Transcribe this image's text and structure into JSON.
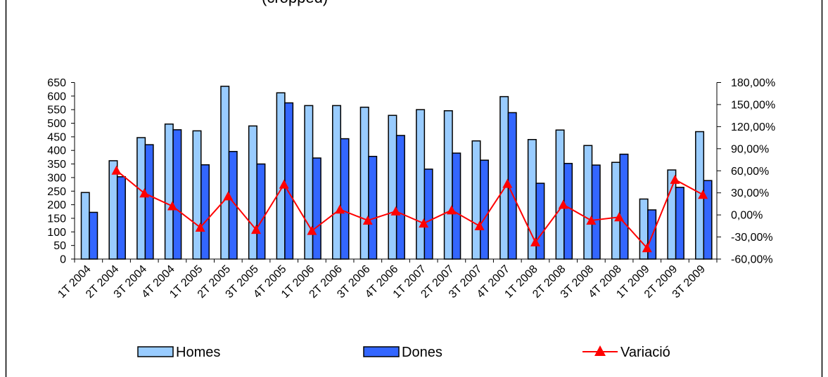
{
  "chart_data": {
    "type": "bar",
    "title": "(cropped)",
    "categories": [
      "1T 2004",
      "2T 2004",
      "3T 2004",
      "4T 2004",
      "1T 2005",
      "2T 2005",
      "3T 2005",
      "4T 2005",
      "1T 2006",
      "2T 2006",
      "3T 2006",
      "4T 2006",
      "1T 2007",
      "2T 2007",
      "3T 2007",
      "4T 2007",
      "1T 2008",
      "2T 2008",
      "3T 2008",
      "4T 2008",
      "1T 2009",
      "2T 2009",
      "3T 2009"
    ],
    "series": [
      {
        "name": "Homes",
        "kind": "bar",
        "axis": "left",
        "color": "#99ccff",
        "values": [
          245,
          362,
          447,
          497,
          472,
          636,
          490,
          612,
          565,
          565,
          559,
          529,
          550,
          546,
          435,
          598,
          440,
          475,
          418,
          356,
          221,
          328,
          469
        ]
      },
      {
        "name": "Dones",
        "kind": "bar",
        "axis": "left",
        "color": "#3366ff",
        "values": [
          172,
          303,
          421,
          476,
          347,
          396,
          350,
          575,
          372,
          443,
          378,
          455,
          331,
          390,
          364,
          539,
          279,
          352,
          346,
          386,
          181,
          264,
          289
        ]
      },
      {
        "name": "Variació",
        "kind": "line",
        "axis": "right",
        "color": "#ff0000",
        "values": [
          null,
          60.5,
          29.5,
          12.0,
          -17.0,
          25.5,
          -20.0,
          41.5,
          -21.5,
          7.5,
          -7.5,
          5.0,
          -11.5,
          6.5,
          -15.0,
          42.5,
          -37.0,
          14.0,
          -7.5,
          -3.0,
          -45.0,
          48.0,
          27.5
        ]
      }
    ],
    "left_axis": {
      "min": 0,
      "max": 650,
      "step": 50,
      "tick_labels": [
        "0",
        "50",
        "100",
        "150",
        "200",
        "250",
        "300",
        "350",
        "400",
        "450",
        "500",
        "550",
        "600",
        "650"
      ]
    },
    "right_axis": {
      "min": -60,
      "max": 180,
      "step": 30,
      "tick_labels": [
        "-60,00%",
        "-30,00%",
        "0,00%",
        "30,00%",
        "60,00%",
        "90,00%",
        "120,00%",
        "150,00%",
        "180,00%"
      ]
    },
    "legend": {
      "position": "bottom",
      "items": [
        "Homes",
        "Dones",
        "Variació"
      ]
    },
    "grid": false
  }
}
